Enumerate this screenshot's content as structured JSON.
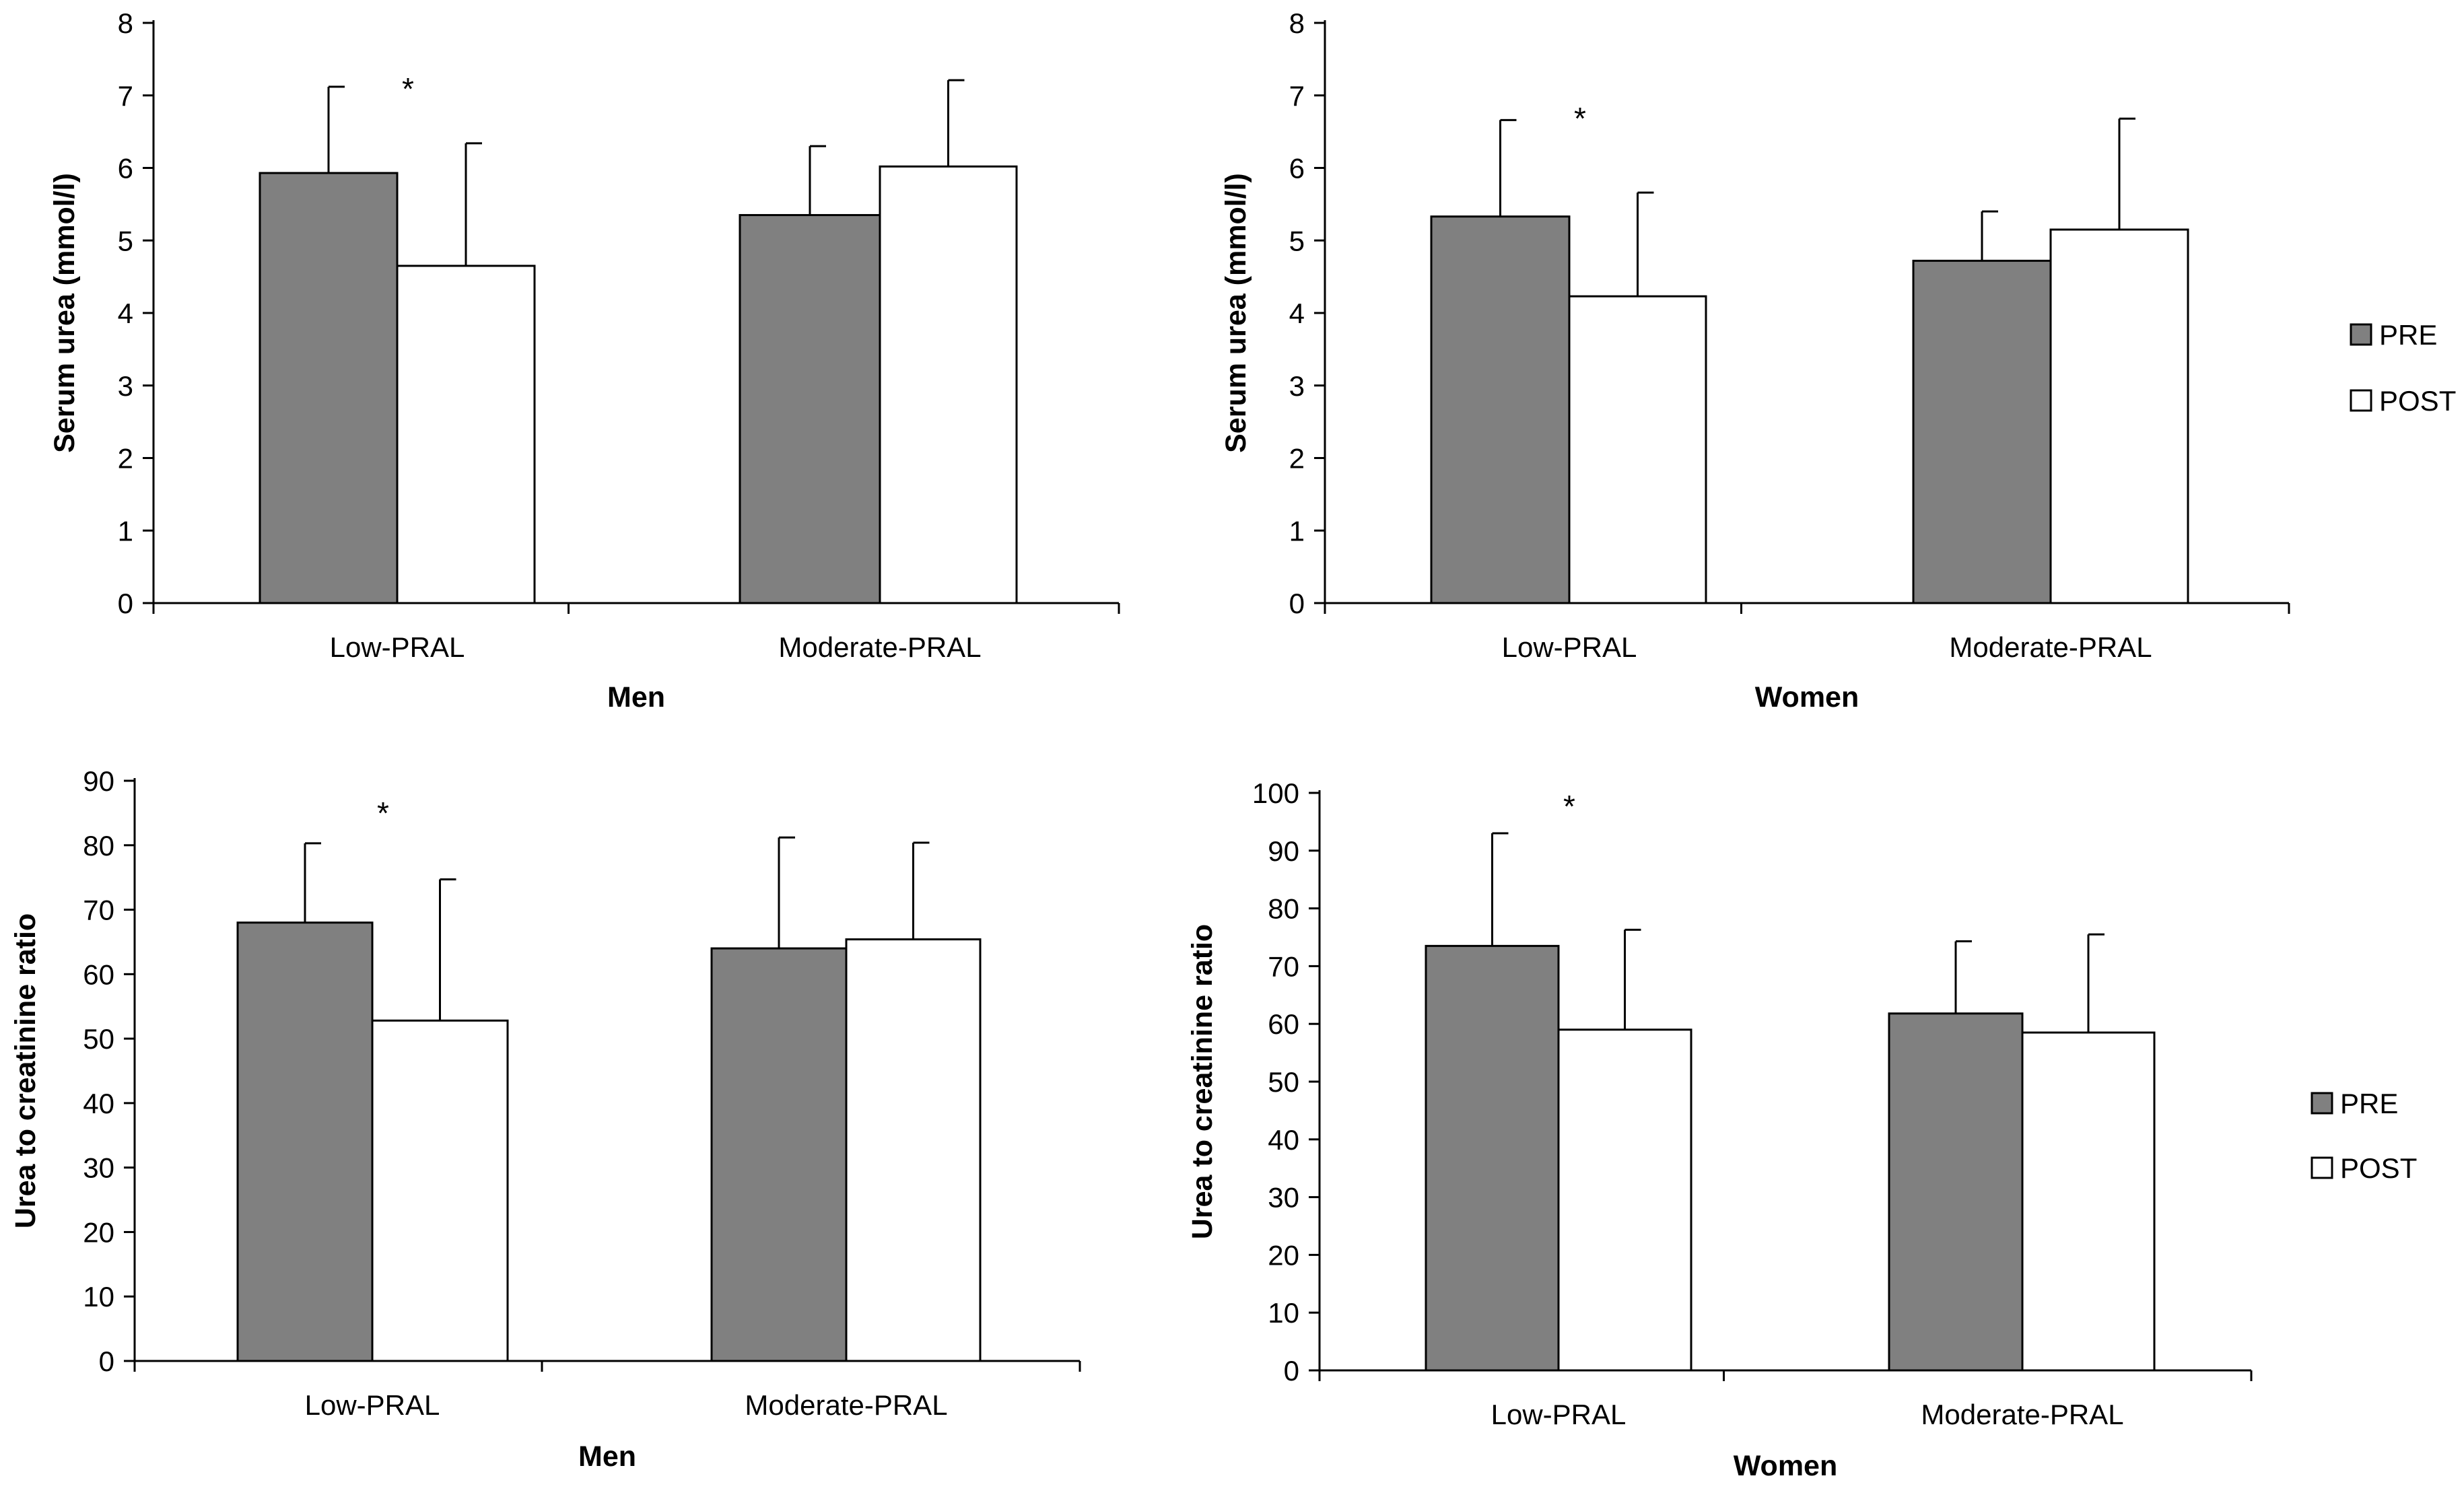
{
  "colors": {
    "pre": "#808080",
    "post": "#ffffff",
    "stroke": "#000000"
  },
  "chart_data": [
    {
      "type": "bar",
      "categories": [
        "Low-PRAL",
        "Moderate-PRAL"
      ],
      "xlabel": "Men",
      "ylabel": "Serum urea (mmol/l)",
      "ylim": [
        0,
        8
      ],
      "yticks": [
        0,
        1,
        2,
        3,
        4,
        5,
        6,
        7,
        8
      ],
      "series": [
        {
          "name": "PRE",
          "values": [
            5.93,
            5.35
          ],
          "error": [
            1.19,
            0.95
          ]
        },
        {
          "name": "POST",
          "values": [
            4.65,
            6.02
          ],
          "error": [
            1.69,
            1.19
          ]
        }
      ],
      "annotations": [
        {
          "text": "*",
          "category": "Low-PRAL"
        }
      ],
      "legend": "none"
    },
    {
      "type": "bar",
      "categories": [
        "Low-PRAL",
        "Moderate-PRAL"
      ],
      "xlabel": "Women",
      "ylabel": "Serum urea (mmol/l)",
      "ylim": [
        0,
        8
      ],
      "yticks": [
        0,
        1,
        2,
        3,
        4,
        5,
        6,
        7,
        8
      ],
      "series": [
        {
          "name": "PRE",
          "values": [
            5.33,
            4.72
          ],
          "error": [
            1.33,
            0.68
          ]
        },
        {
          "name": "POST",
          "values": [
            4.23,
            5.15
          ],
          "error": [
            1.43,
            1.53
          ]
        }
      ],
      "annotations": [
        {
          "text": "*",
          "category": "Low-PRAL"
        }
      ],
      "legend": "right"
    },
    {
      "type": "bar",
      "categories": [
        "Low-PRAL",
        "Moderate-PRAL"
      ],
      "xlabel": "Men",
      "ylabel": "Urea to creatinine ratio",
      "ylim": [
        0,
        90
      ],
      "yticks": [
        0,
        10,
        20,
        30,
        40,
        50,
        60,
        70,
        80,
        90
      ],
      "series": [
        {
          "name": "PRE",
          "values": [
            68.0,
            64.0
          ],
          "error": [
            12.3,
            17.2
          ]
        },
        {
          "name": "POST",
          "values": [
            52.8,
            65.4
          ],
          "error": [
            21.9,
            15.0
          ]
        }
      ],
      "annotations": [
        {
          "text": "*",
          "category": "Low-PRAL"
        }
      ],
      "legend": "none"
    },
    {
      "type": "bar",
      "categories": [
        "Low-PRAL",
        "Moderate-PRAL"
      ],
      "xlabel": "Women",
      "ylabel": "Urea to creatinine ratio",
      "ylim": [
        0,
        100
      ],
      "yticks": [
        0,
        10,
        20,
        30,
        40,
        50,
        60,
        70,
        80,
        90,
        100
      ],
      "series": [
        {
          "name": "PRE",
          "values": [
            73.5,
            61.8
          ],
          "error": [
            19.5,
            12.5
          ]
        },
        {
          "name": "POST",
          "values": [
            59.0,
            58.5
          ],
          "error": [
            17.3,
            17.0
          ]
        }
      ],
      "annotations": [
        {
          "text": "*",
          "category": "Low-PRAL"
        }
      ],
      "legend": "right"
    }
  ]
}
